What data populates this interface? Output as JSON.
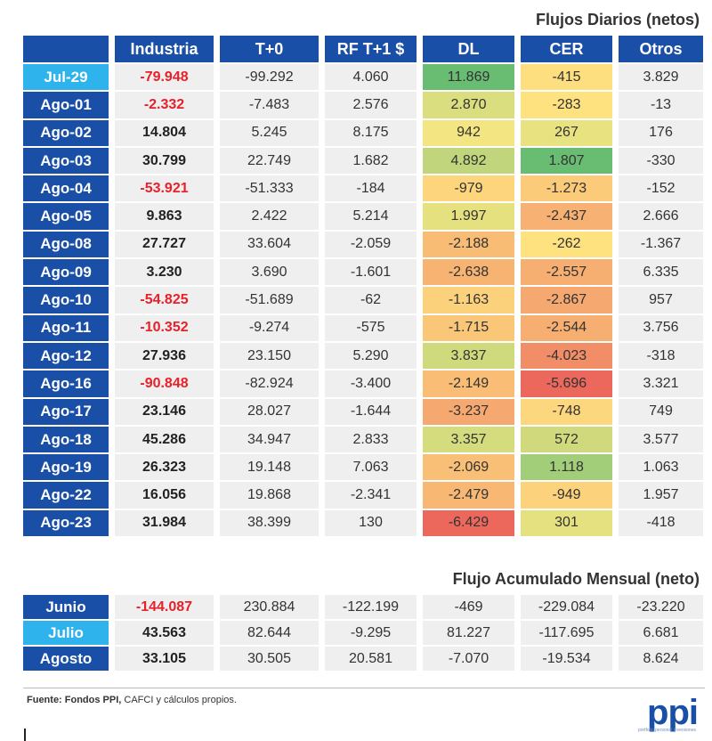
{
  "daily_title": "Flujos Diarios (netos)",
  "monthly_title": "Flujo Acumulado Mensual (neto)",
  "source": {
    "bold": "Fuente: Fondos PPI,",
    "rest": " CAFCI y cálculos propios."
  },
  "logo": "ppi",
  "logo_sub": "portfolio personal inversiones",
  "colors": {
    "header_bg": "#1a4fa8",
    "highlight_bg": "#2eb3ec",
    "negative_text": "#e8202a",
    "cell_bg": "#efefef"
  },
  "chart_data": [
    {
      "type": "table",
      "title": "Flujos Diarios (netos)",
      "columns": [
        "",
        "Industria",
        "T+0",
        "RF T+1 $",
        "DL",
        "CER",
        "Otros"
      ],
      "rows": [
        {
          "label": "Jul-29",
          "highlight": true,
          "industria": "-79.948",
          "industria_neg": true,
          "t0": "-99.292",
          "rf": "4.060",
          "dl": "11.869",
          "dl_value": 11869,
          "cer": "-415",
          "cer_value": -415,
          "otros": "3.829"
        },
        {
          "label": "Ago-01",
          "highlight": false,
          "industria": "-2.332",
          "industria_neg": true,
          "t0": "-7.483",
          "rf": "2.576",
          "dl": "2.870",
          "dl_value": 2870,
          "cer": "-283",
          "cer_value": -283,
          "otros": "-13"
        },
        {
          "label": "Ago-02",
          "highlight": false,
          "industria": "14.804",
          "industria_neg": false,
          "t0": "5.245",
          "rf": "8.175",
          "dl": "942",
          "dl_value": 942,
          "cer": "267",
          "cer_value": 267,
          "otros": "176"
        },
        {
          "label": "Ago-03",
          "highlight": false,
          "industria": "30.799",
          "industria_neg": false,
          "t0": "22.749",
          "rf": "1.682",
          "dl": "4.892",
          "dl_value": 4892,
          "cer": "1.807",
          "cer_value": 1807,
          "otros": "-330"
        },
        {
          "label": "Ago-04",
          "highlight": false,
          "industria": "-53.921",
          "industria_neg": true,
          "t0": "-51.333",
          "rf": "-184",
          "dl": "-979",
          "dl_value": -979,
          "cer": "-1.273",
          "cer_value": -1273,
          "otros": "-152"
        },
        {
          "label": "Ago-05",
          "highlight": false,
          "industria": "9.863",
          "industria_neg": false,
          "t0": "2.422",
          "rf": "5.214",
          "dl": "1.997",
          "dl_value": 1997,
          "cer": "-2.437",
          "cer_value": -2437,
          "otros": "2.666"
        },
        {
          "label": "Ago-08",
          "highlight": false,
          "industria": "27.727",
          "industria_neg": false,
          "t0": "33.604",
          "rf": "-2.059",
          "dl": "-2.188",
          "dl_value": -2188,
          "cer": "-262",
          "cer_value": -262,
          "otros": "-1.367"
        },
        {
          "label": "Ago-09",
          "highlight": false,
          "industria": "3.230",
          "industria_neg": false,
          "t0": "3.690",
          "rf": "-1.601",
          "dl": "-2.638",
          "dl_value": -2638,
          "cer": "-2.557",
          "cer_value": -2557,
          "otros": "6.335"
        },
        {
          "label": "Ago-10",
          "highlight": false,
          "industria": "-54.825",
          "industria_neg": true,
          "t0": "-51.689",
          "rf": "-62",
          "dl": "-1.163",
          "dl_value": -1163,
          "cer": "-2.867",
          "cer_value": -2867,
          "otros": "957"
        },
        {
          "label": "Ago-11",
          "highlight": false,
          "industria": "-10.352",
          "industria_neg": true,
          "t0": "-9.274",
          "rf": "-575",
          "dl": "-1.715",
          "dl_value": -1715,
          "cer": "-2.544",
          "cer_value": -2544,
          "otros": "3.756"
        },
        {
          "label": "Ago-12",
          "highlight": false,
          "industria": "27.936",
          "industria_neg": false,
          "t0": "23.150",
          "rf": "5.290",
          "dl": "3.837",
          "dl_value": 3837,
          "cer": "-4.023",
          "cer_value": -4023,
          "otros": "-318"
        },
        {
          "label": "Ago-16",
          "highlight": false,
          "industria": "-90.848",
          "industria_neg": true,
          "t0": "-82.924",
          "rf": "-3.400",
          "dl": "-2.149",
          "dl_value": -2149,
          "cer": "-5.696",
          "cer_value": -5696,
          "otros": "3.321"
        },
        {
          "label": "Ago-17",
          "highlight": false,
          "industria": "23.146",
          "industria_neg": false,
          "t0": "28.027",
          "rf": "-1.644",
          "dl": "-3.237",
          "dl_value": -3237,
          "cer": "-748",
          "cer_value": -748,
          "otros": "749"
        },
        {
          "label": "Ago-18",
          "highlight": false,
          "industria": "45.286",
          "industria_neg": false,
          "t0": "34.947",
          "rf": "2.833",
          "dl": "3.357",
          "dl_value": 3357,
          "cer": "572",
          "cer_value": 572,
          "otros": "3.577"
        },
        {
          "label": "Ago-19",
          "highlight": false,
          "industria": "26.323",
          "industria_neg": false,
          "t0": "19.148",
          "rf": "7.063",
          "dl": "-2.069",
          "dl_value": -2069,
          "cer": "1.118",
          "cer_value": 1118,
          "otros": "1.063"
        },
        {
          "label": "Ago-22",
          "highlight": false,
          "industria": "16.056",
          "industria_neg": false,
          "t0": "19.868",
          "rf": "-2.341",
          "dl": "-2.479",
          "dl_value": -2479,
          "cer": "-949",
          "cer_value": -949,
          "otros": "1.957"
        },
        {
          "label": "Ago-23",
          "highlight": false,
          "industria": "31.984",
          "industria_neg": false,
          "t0": "38.399",
          "rf": "130",
          "dl": "-6.429",
          "dl_value": -6429,
          "cer": "301",
          "cer_value": 301,
          "otros": "-418"
        }
      ]
    },
    {
      "type": "table",
      "title": "Flujo Acumulado Mensual (neto)",
      "rows": [
        {
          "label": "Junio",
          "highlight": false,
          "industria": "-144.087",
          "industria_neg": true,
          "t0": "230.884",
          "rf": "-122.199",
          "dl": "-469",
          "cer": "-229.084",
          "otros": "-23.220"
        },
        {
          "label": "Julio",
          "highlight": true,
          "industria": "43.563",
          "industria_neg": false,
          "t0": "82.644",
          "rf": "-9.295",
          "dl": "81.227",
          "cer": "-117.695",
          "otros": "6.681"
        },
        {
          "label": "Agosto",
          "highlight": false,
          "industria": "33.105",
          "industria_neg": false,
          "t0": "30.505",
          "rf": "20.581",
          "dl": "-7.070",
          "cer": "-19.534",
          "otros": "8.624"
        }
      ]
    }
  ]
}
